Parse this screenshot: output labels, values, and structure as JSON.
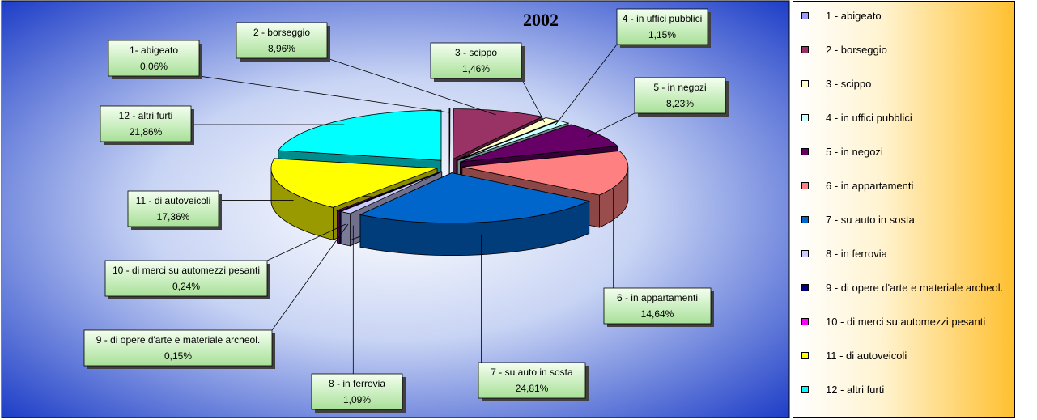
{
  "chart_data": {
    "type": "pie3d",
    "title": "2002",
    "categories": [
      "1 - abigeato",
      "2 - borseggio",
      "3 - scippo",
      "4 - in uffici pubblici",
      "5 - in negozi",
      "6 - in appartamenti",
      "7 - su auto in sosta",
      "8 - in ferrovia",
      "9 - di opere d'arte e materiale archeol.",
      "10 - di merci su automezzi pesanti",
      "11 - di autoveicoli",
      "12 - altri furti"
    ],
    "callout_labels": [
      "1- abigeato",
      "2 - borseggio",
      "3 - scippo",
      "4 - in uffici pubblici",
      "5 - in negozi",
      "6 - in appartamenti",
      "7 - su auto in sosta",
      "8 - in ferrovia",
      "9 - di opere d'arte e materiale archeol.",
      "10 - di merci su automezzi pesanti",
      "11 - di autoveicoli",
      "12 - altri furti"
    ],
    "values": [
      0.06,
      8.96,
      1.46,
      1.15,
      8.23,
      14.64,
      24.81,
      1.09,
      0.15,
      0.24,
      17.36,
      21.86
    ],
    "value_labels": [
      "0,06%",
      "8,96%",
      "1,46%",
      "1,15%",
      "8,23%",
      "14,64%",
      "24,81%",
      "1,09%",
      "0,15%",
      "0,24%",
      "17,36%",
      "21,86%"
    ],
    "colors": [
      "#9999ff",
      "#993366",
      "#ffffcc",
      "#ccffff",
      "#660066",
      "#ff8080",
      "#0066cc",
      "#ccccff",
      "#000080",
      "#ff00ff",
      "#ffff00",
      "#00ffff"
    ],
    "legend": "right"
  }
}
